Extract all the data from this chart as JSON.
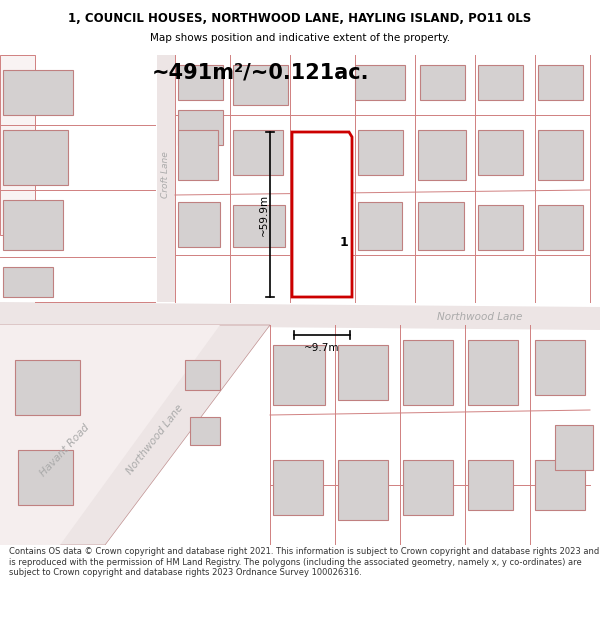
{
  "title_line1": "1, COUNCIL HOUSES, NORTHWOOD LANE, HAYLING ISLAND, PO11 0LS",
  "title_line2": "Map shows position and indicative extent of the property.",
  "area_text": "~491m²/~0.121ac.",
  "dim_height": "~59.9m",
  "dim_width": "~9.7m",
  "label_number": "1",
  "footer_text": "Contains OS data © Crown copyright and database right 2021. This information is subject to Crown copyright and database rights 2023 and is reproduced with the permission of HM Land Registry. The polygons (including the associated geometry, namely x, y co-ordinates) are subject to Crown copyright and database rights 2023 Ordnance Survey 100026316.",
  "bg_color": "#ffffff",
  "map_bg": "#f9f3f3",
  "plot_fill": "#ffffff",
  "plot_stroke": "#cc0000",
  "building_fill": "#d4d0d0",
  "building_stroke": "#c08080",
  "road_color": "#ede5e5",
  "road_stroke": "#c09090",
  "dim_line_color": "#000000",
  "text_color": "#000000",
  "road_text_color": "#aaaaaa",
  "boundary_color": "#d08080"
}
